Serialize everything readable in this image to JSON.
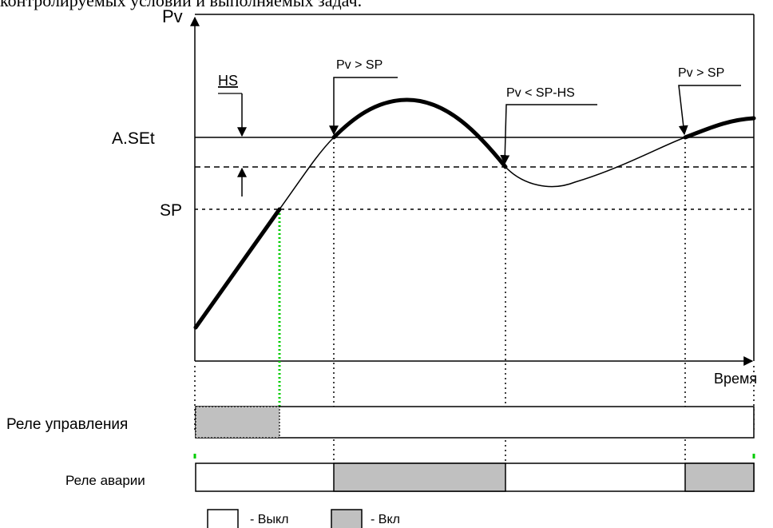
{
  "header_text": "контролируемых условий и выполняемых задач.",
  "axes": {
    "y_label": "Pv",
    "x_label": "Время"
  },
  "levels": {
    "aset_label": "A.SEt",
    "sp_label": "SP",
    "hs_label": "HS"
  },
  "annotations": {
    "first_cross": "Pv > SP",
    "drop_below": "Pv < SP-HS",
    "second_cross": "Pv > SP"
  },
  "relays": {
    "control_label": "Реле управления",
    "alarm_label": "Реле аварии"
  },
  "legend": {
    "off_label": "- Выкл",
    "on_label": "- Вкл"
  },
  "colors": {
    "relay_on": "#c0c0c0",
    "green_marker": "#00cc00",
    "line": "#000000"
  }
}
